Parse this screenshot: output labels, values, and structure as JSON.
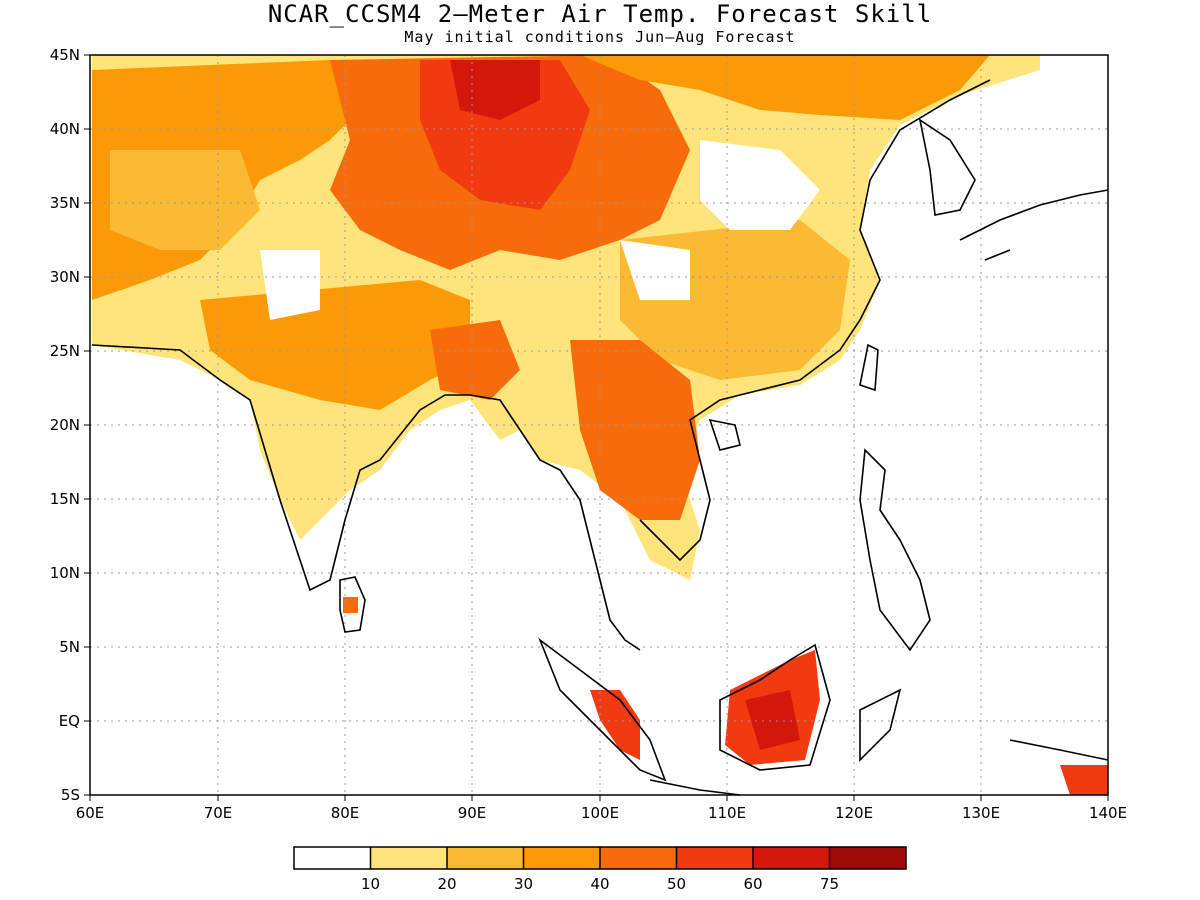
{
  "title": "NCAR_CCSM4 2—Meter Air Temp. Forecast Skill",
  "subtitle": "May initial conditions  Jun—Aug Forecast",
  "lat_labels": [
    "45N",
    "40N",
    "35N",
    "30N",
    "25N",
    "20N",
    "15N",
    "10N",
    "5N",
    "EQ",
    "5S"
  ],
  "lon_labels": [
    "60E",
    "70E",
    "80E",
    "90E",
    "100E",
    "110E",
    "120E",
    "130E",
    "140E"
  ],
  "colorbar": {
    "colors": [
      "#ffffff",
      "#fee47a",
      "#fcb933",
      "#fb9a06",
      "#f86b0a",
      "#f23a10",
      "#d4170b",
      "#9e0a05"
    ],
    "labels": [
      "10",
      "20",
      "30",
      "40",
      "50",
      "60",
      "75"
    ]
  },
  "colors": {
    "land_outline": "#000000",
    "grid": "#999999"
  }
}
